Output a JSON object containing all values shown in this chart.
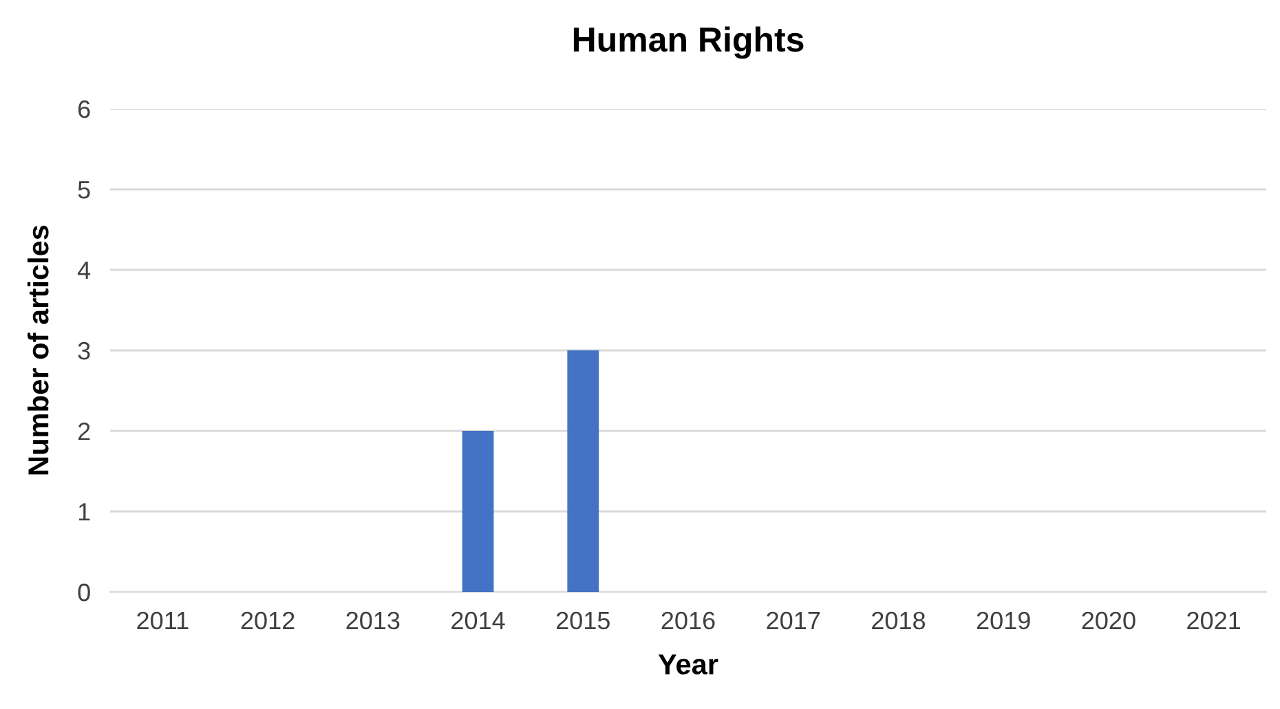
{
  "chart_data": {
    "type": "bar",
    "title": "Human Rights",
    "xlabel": "Year",
    "ylabel": "Number of articles",
    "categories": [
      "2011",
      "2012",
      "2013",
      "2014",
      "2015",
      "2016",
      "2017",
      "2018",
      "2019",
      "2020",
      "2021"
    ],
    "values": [
      0,
      0,
      0,
      2,
      3,
      0,
      0,
      0,
      0,
      0,
      0
    ],
    "color": "#4472c4",
    "ylim": [
      0,
      6
    ],
    "yticks": [
      0,
      1,
      2,
      3,
      4,
      5,
      6
    ],
    "grid": "y",
    "legend": false
  }
}
